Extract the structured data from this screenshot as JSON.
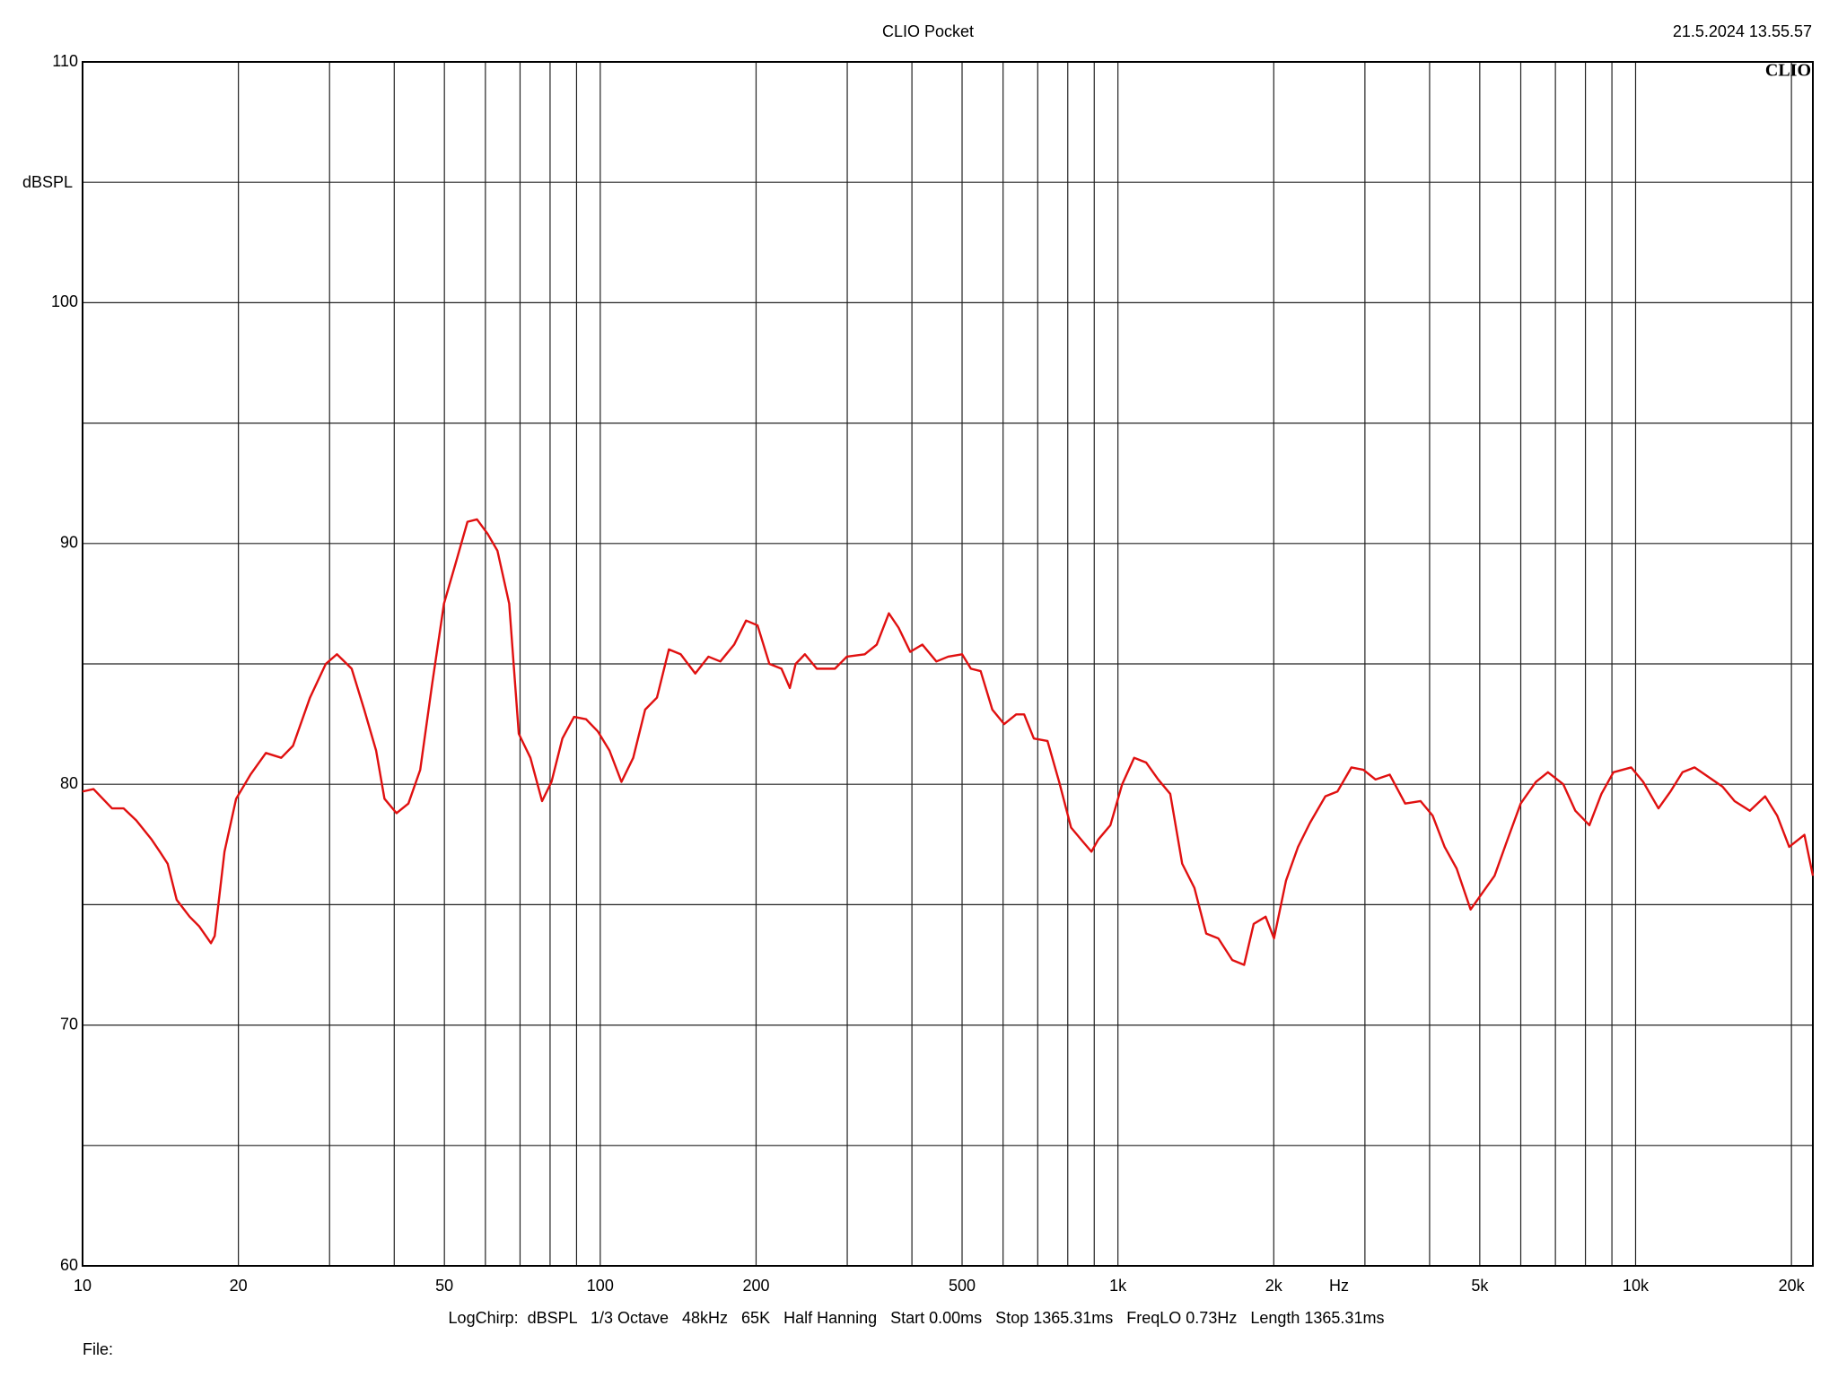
{
  "chart_data": {
    "type": "line",
    "title": "CLIO Pocket",
    "timestamp": "21.5.2024 13.55.57",
    "logo": "CLIO",
    "y_label": "dBSPL",
    "x_label": "Hz",
    "footer": "LogChirp:  dBSPL   1/3 Octave   48kHz   65K   Half Hanning   Start 0.00ms   Stop 1365.31ms   FreqLO 0.73Hz   Length 1365.31ms",
    "file_label": "File:",
    "log_x": true,
    "grid": true,
    "color": "#e01010",
    "xlim": [
      10,
      22000
    ],
    "ylim": [
      60,
      110
    ],
    "xticks": [
      10,
      20,
      50,
      100,
      200,
      500,
      {
        "value": 1000,
        "label": "1k"
      },
      {
        "value": 2000,
        "label": "2k"
      },
      {
        "value": 5000,
        "label": "5k"
      },
      {
        "value": 10000,
        "label": "10k"
      },
      {
        "value": 20000,
        "label": "20k"
      }
    ],
    "xticks_minor": [
      30,
      40,
      60,
      70,
      80,
      90,
      300,
      400,
      600,
      700,
      800,
      900,
      3000,
      4000,
      6000,
      7000,
      8000,
      9000
    ],
    "yticks": [
      60,
      70,
      80,
      90,
      100,
      110
    ],
    "yticks_minor": [
      65,
      75,
      85,
      95,
      105
    ],
    "x": [
      10,
      10.5,
      11.4,
      12,
      12.7,
      13.6,
      14.1,
      14.6,
      15.2,
      16.1,
      16.8,
      17.7,
      18,
      18.8,
      19.8,
      21.1,
      22.6,
      24.2,
      25.5,
      27.5,
      29.5,
      31,
      33.1,
      35,
      36.9,
      38.3,
      40.4,
      42.6,
      44.9,
      47.3,
      49.9,
      52.6,
      55.4,
      57.8,
      60.6,
      63.3,
      66.7,
      69.6,
      73.3,
      77.2,
      80.5,
      84.5,
      89,
      93.9,
      98.9,
      104.2,
      109.9,
      115.8,
      122.1,
      128.7,
      135.7,
      143,
      152.6,
      161.8,
      170.6,
      181.4,
      191.3,
      201.3,
      212.2,
      223.9,
      232.4,
      238.5,
      248.5,
      262,
      284,
      299.5,
      324.3,
      342,
      361,
      377,
      397,
      419,
      446,
      470,
      500,
      520,
      543,
      572,
      603,
      636,
      659,
      688,
      731,
      770,
      812,
      857,
      889,
      916,
      967,
      1019,
      1075,
      1134,
      1196,
      1262,
      1331,
      1405,
      1481,
      1563,
      1663,
      1753,
      1829,
      1929,
      2002,
      2112,
      2228,
      2350,
      2516,
      2655,
      2825,
      2980,
      3144,
      3350,
      3588,
      3843,
      4054,
      4276,
      4511,
      4800,
      5063,
      5340,
      5634,
      5998,
      6418,
      6771,
      7250,
      7648,
      8142,
      8589,
      9061,
      9804,
      10342,
      11070,
      11678,
      12320,
      12997,
      13833,
      14723,
      15532,
      16623,
      17790,
      18768,
      19800,
      21190,
      22000
    ],
    "values": [
      79.7,
      79.8,
      79.0,
      79.0,
      78.5,
      77.7,
      77.2,
      76.7,
      75.2,
      74.5,
      74.1,
      73.4,
      73.7,
      77.2,
      79.4,
      80.4,
      81.3,
      81.1,
      81.6,
      83.6,
      85.0,
      85.4,
      84.8,
      83.1,
      81.4,
      79.4,
      78.8,
      79.2,
      80.6,
      84.1,
      87.5,
      89.2,
      90.9,
      91.0,
      90.4,
      89.7,
      87.5,
      82.1,
      81.1,
      79.3,
      80.1,
      81.9,
      82.8,
      82.7,
      82.2,
      81.4,
      80.1,
      81.1,
      83.1,
      83.6,
      85.6,
      85.4,
      84.6,
      85.3,
      85.1,
      85.8,
      86.8,
      86.6,
      85.0,
      84.8,
      84.0,
      85.0,
      85.4,
      84.8,
      84.8,
      85.3,
      85.4,
      85.8,
      87.1,
      86.5,
      85.5,
      85.8,
      85.1,
      85.3,
      85.4,
      84.8,
      84.7,
      83.1,
      82.5,
      82.9,
      82.9,
      81.9,
      81.8,
      80.1,
      78.2,
      77.6,
      77.2,
      77.7,
      78.3,
      80.0,
      81.1,
      80.9,
      80.2,
      79.6,
      76.7,
      75.7,
      73.8,
      73.6,
      72.7,
      72.5,
      74.2,
      74.5,
      73.6,
      76.0,
      77.4,
      78.4,
      79.5,
      79.7,
      80.7,
      80.6,
      80.2,
      80.4,
      79.2,
      79.3,
      78.7,
      77.4,
      76.5,
      74.8,
      75.5,
      76.2,
      77.6,
      79.2,
      80.1,
      80.5,
      80.0,
      78.9,
      78.3,
      79.6,
      80.5,
      80.7,
      80.1,
      79.0,
      79.7,
      80.5,
      80.7,
      80.3,
      79.9,
      79.3,
      78.9,
      79.5,
      78.7,
      77.4,
      77.9,
      76.2
    ]
  }
}
